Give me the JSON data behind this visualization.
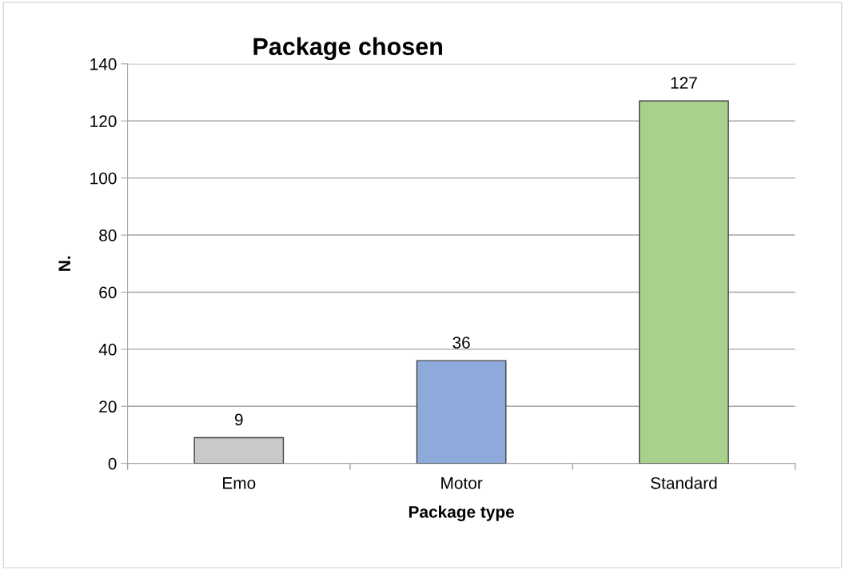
{
  "chart_data": {
    "type": "bar",
    "title": "Package chosen",
    "xlabel": "Package type",
    "ylabel": "N.",
    "categories": [
      "Emo",
      "Motor",
      "Standard"
    ],
    "values": [
      9,
      36,
      127
    ],
    "colors": [
      "#c9c9c9",
      "#8eaadb",
      "#a9d18e"
    ],
    "ylim": [
      0,
      140
    ],
    "yticks": [
      0,
      20,
      40,
      60,
      80,
      100,
      120,
      140
    ],
    "grid": "y",
    "data_labels": true
  }
}
